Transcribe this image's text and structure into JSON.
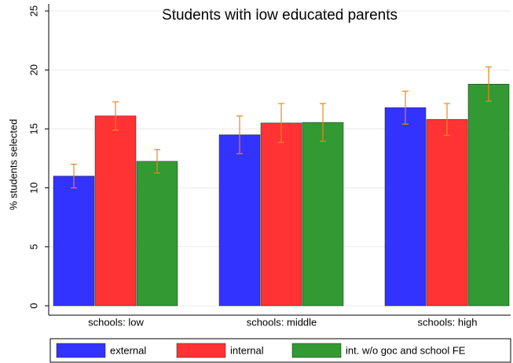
{
  "chart_data": {
    "type": "bar",
    "title": "Students with low educated parents",
    "ylabel": "% students selected",
    "categories": [
      "schools: low",
      "schools: middle",
      "schools: high"
    ],
    "series": [
      {
        "name": "external",
        "color": "#3333ff",
        "values": [
          11.0,
          14.5,
          16.8
        ],
        "errors": [
          1.0,
          1.6,
          1.4
        ]
      },
      {
        "name": "internal",
        "color": "#ff3333",
        "values": [
          16.1,
          15.5,
          15.8
        ],
        "errors": [
          1.2,
          1.65,
          1.35
        ]
      },
      {
        "name": "int. w/o goc and school FE",
        "color": "#339933",
        "values": [
          12.25,
          15.55,
          18.8
        ],
        "errors": [
          1.0,
          1.6,
          1.45
        ]
      }
    ],
    "error_color": "#e8871e",
    "ylim": [
      0,
      25
    ],
    "yticks": [
      0,
      5,
      10,
      15,
      20,
      25
    ],
    "grid": true,
    "legend": "bottom"
  }
}
